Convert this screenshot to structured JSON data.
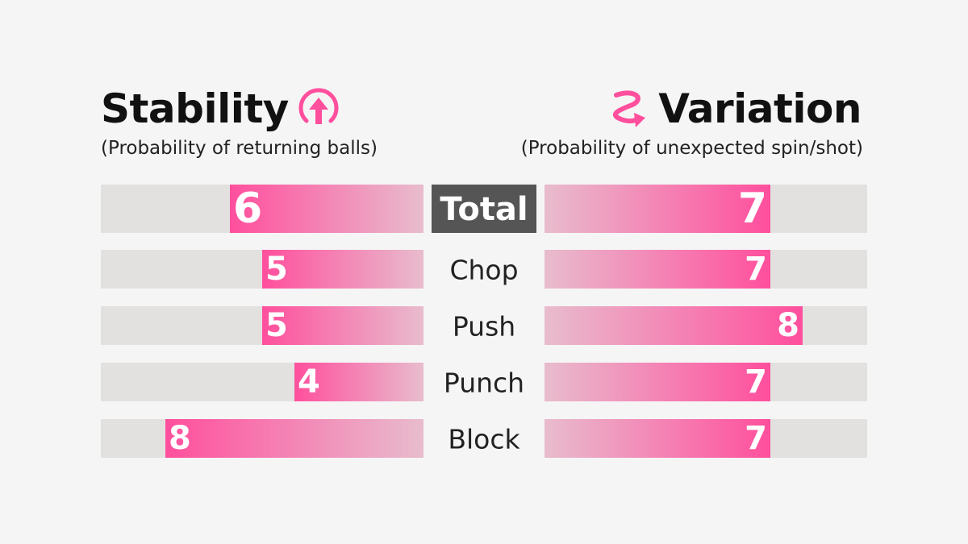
{
  "left_title": "Stability",
  "left_subtitle": "(Probability of returning balls)",
  "right_title": "Variation",
  "right_subtitle": "(Probability of unexpected spin/shot)",
  "icons": {
    "left": "stability-up-arrow-circle-icon",
    "right": "variation-curved-arrow-icon"
  },
  "colors": {
    "accent": "#ff4f9d",
    "accent_light": "#e7b9cb",
    "track": "#e2e1df",
    "total_label_bg": "#555555"
  },
  "chart_data": {
    "type": "bar",
    "scale_max": 10,
    "categories": [
      "Total",
      "Chop",
      "Push",
      "Punch",
      "Block"
    ],
    "series": [
      {
        "name": "Stability",
        "values": [
          6,
          5,
          5,
          4,
          8
        ]
      },
      {
        "name": "Variation",
        "values": [
          7,
          7,
          8,
          7,
          7
        ]
      }
    ]
  }
}
